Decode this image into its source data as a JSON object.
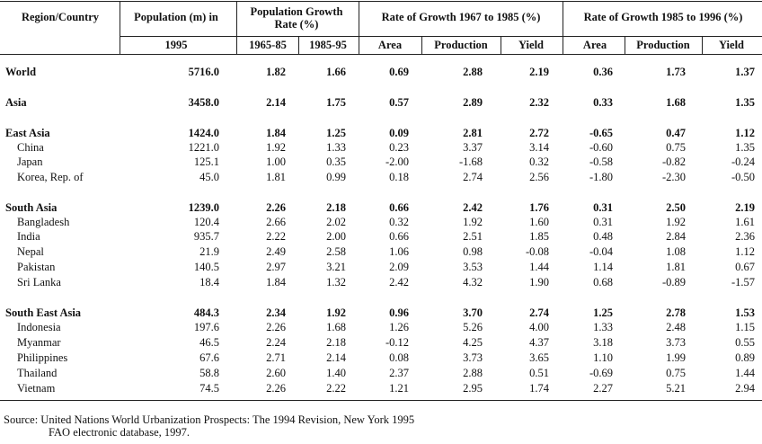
{
  "header": {
    "region": "Region/Country",
    "population_top": "Population (m) in",
    "population_year": "1995",
    "popgrowth_title": "Population Growth Rate (%)",
    "popgrowth_p1": "1965-85",
    "popgrowth_p2": "1985-95",
    "growth1_title": "Rate of Growth 1967 to 1985 (%)",
    "growth2_title": "Rate of Growth 1985 to 1996 (%)",
    "area": "Area",
    "production": "Production",
    "yield": "Yield"
  },
  "rows": [
    {
      "name": "World",
      "bold": true,
      "indent": false,
      "cells": [
        "5716.0",
        "1.82",
        "1.66",
        "0.69",
        "2.88",
        "2.19",
        "0.36",
        "1.73",
        "1.37"
      ]
    },
    {
      "name": "Asia",
      "bold": true,
      "indent": false,
      "cells": [
        "3458.0",
        "2.14",
        "1.75",
        "0.57",
        "2.89",
        "2.32",
        "0.33",
        "1.68",
        "1.35"
      ]
    },
    {
      "name": "East Asia",
      "bold": true,
      "indent": false,
      "cells": [
        "1424.0",
        "1.84",
        "1.25",
        "0.09",
        "2.81",
        "2.72",
        "-0.65",
        "0.47",
        "1.12"
      ]
    },
    {
      "name": "China",
      "bold": false,
      "indent": true,
      "cells": [
        "1221.0",
        "1.92",
        "1.33",
        "0.23",
        "3.37",
        "3.14",
        "-0.60",
        "0.75",
        "1.35"
      ]
    },
    {
      "name": "Japan",
      "bold": false,
      "indent": true,
      "cells": [
        "125.1",
        "1.00",
        "0.35",
        "-2.00",
        "-1.68",
        "0.32",
        "-0.58",
        "-0.82",
        "-0.24"
      ]
    },
    {
      "name": "Korea, Rep. of",
      "bold": false,
      "indent": true,
      "cells": [
        "45.0",
        "1.81",
        "0.99",
        "0.18",
        "2.74",
        "2.56",
        "-1.80",
        "-2.30",
        "-0.50"
      ]
    },
    {
      "name": "South Asia",
      "bold": true,
      "indent": false,
      "cells": [
        "1239.0",
        "2.26",
        "2.18",
        "0.66",
        "2.42",
        "1.76",
        "0.31",
        "2.50",
        "2.19"
      ]
    },
    {
      "name": "Bangladesh",
      "bold": false,
      "indent": true,
      "cells": [
        "120.4",
        "2.66",
        "2.02",
        "0.32",
        "1.92",
        "1.60",
        "0.31",
        "1.92",
        "1.61"
      ]
    },
    {
      "name": "India",
      "bold": false,
      "indent": true,
      "cells": [
        "935.7",
        "2.22",
        "2.00",
        "0.66",
        "2.51",
        "1.85",
        "0.48",
        "2.84",
        "2.36"
      ]
    },
    {
      "name": "Nepal",
      "bold": false,
      "indent": true,
      "cells": [
        "21.9",
        "2.49",
        "2.58",
        "1.06",
        "0.98",
        "-0.08",
        "-0.04",
        "1.08",
        "1.12"
      ]
    },
    {
      "name": "Pakistan",
      "bold": false,
      "indent": true,
      "cells": [
        "140.5",
        "2.97",
        "3.21",
        "2.09",
        "3.53",
        "1.44",
        "1.14",
        "1.81",
        "0.67"
      ]
    },
    {
      "name": "Sri Lanka",
      "bold": false,
      "indent": true,
      "cells": [
        "18.4",
        "1.84",
        "1.32",
        "2.42",
        "4.32",
        "1.90",
        "0.68",
        "-0.89",
        "-1.57"
      ]
    },
    {
      "name": "South East Asia",
      "bold": true,
      "indent": false,
      "cells": [
        "484.3",
        "2.34",
        "1.92",
        "0.96",
        "3.70",
        "2.74",
        "1.25",
        "2.78",
        "1.53"
      ]
    },
    {
      "name": "Indonesia",
      "bold": false,
      "indent": true,
      "cells": [
        "197.6",
        "2.26",
        "1.68",
        "1.26",
        "5.26",
        "4.00",
        "1.33",
        "2.48",
        "1.15"
      ]
    },
    {
      "name": "Myanmar",
      "bold": false,
      "indent": true,
      "cells": [
        "46.5",
        "2.24",
        "2.18",
        "-0.12",
        "4.25",
        "4.37",
        "3.18",
        "3.73",
        "0.55"
      ]
    },
    {
      "name": "Philippines",
      "bold": false,
      "indent": true,
      "cells": [
        "67.6",
        "2.71",
        "2.14",
        "0.08",
        "3.73",
        "3.65",
        "1.10",
        "1.99",
        "0.89"
      ]
    },
    {
      "name": "Thailand",
      "bold": false,
      "indent": true,
      "cells": [
        "58.8",
        "2.60",
        "1.40",
        "2.37",
        "2.88",
        "0.51",
        "-0.69",
        "0.75",
        "1.44"
      ]
    },
    {
      "name": "Vietnam",
      "bold": false,
      "indent": true,
      "cells": [
        "74.5",
        "2.26",
        "2.22",
        "1.21",
        "2.95",
        "1.74",
        "2.27",
        "5.21",
        "2.94"
      ]
    }
  ],
  "source": {
    "line1": "Source:  United Nations World Urbanization Prospects:  The 1994 Revision, New York 1995",
    "line2": "FAO electronic database, 1997."
  }
}
